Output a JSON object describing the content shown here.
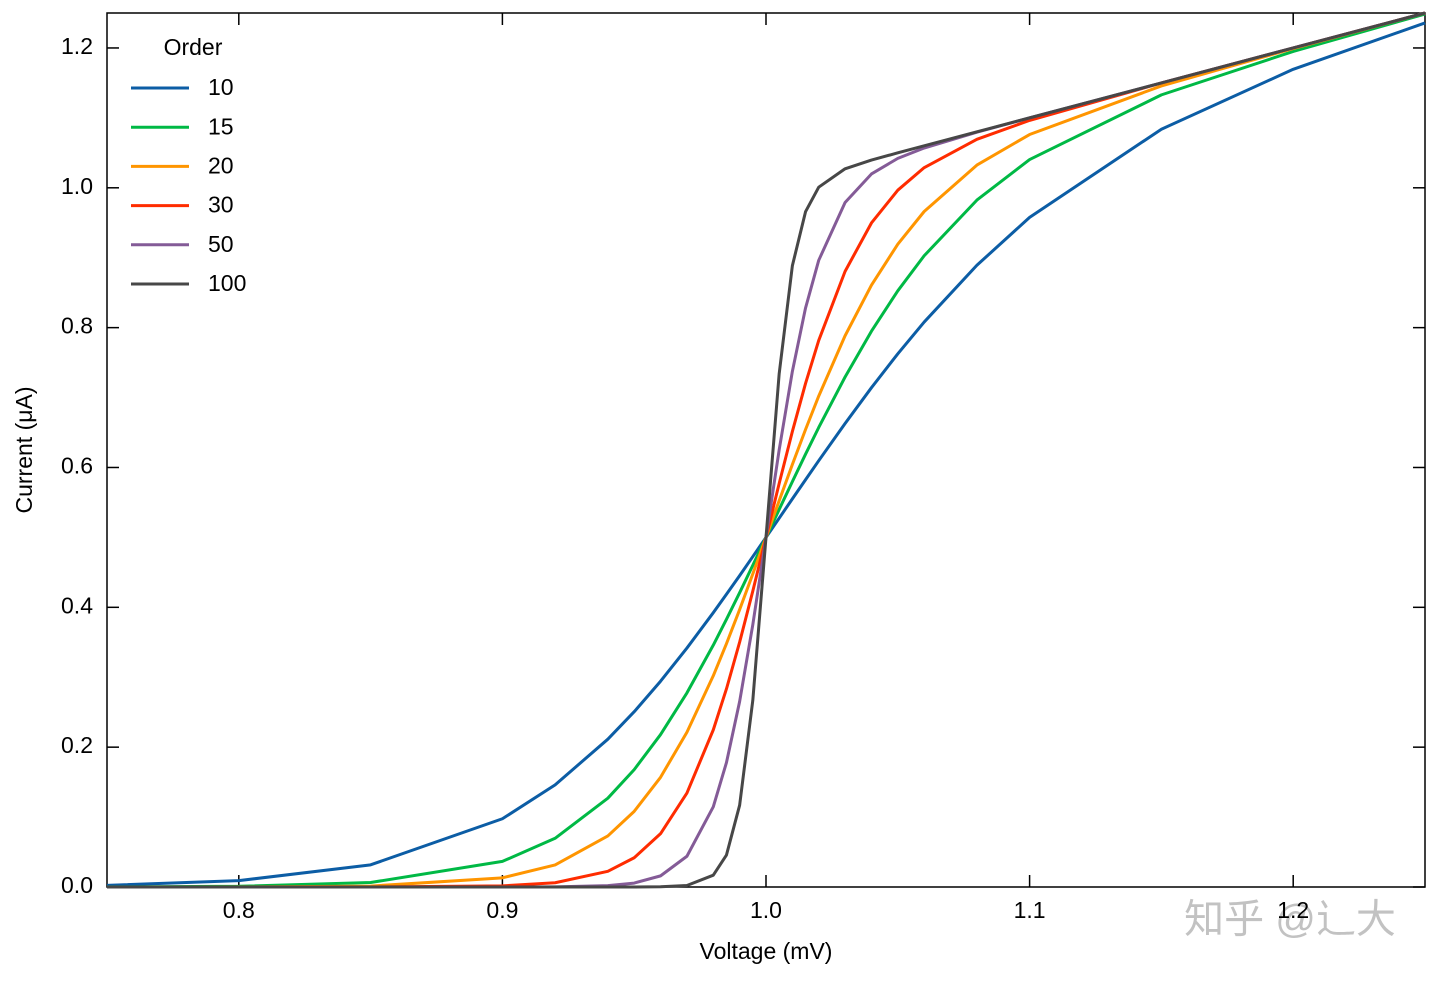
{
  "chart_data": {
    "type": "line",
    "xlabel": "Voltage (mV)",
    "ylabel": "Current (μA)",
    "legend_title": "Order",
    "legend_corner": "upper left",
    "watermark": "知乎 @辶大",
    "xlim": [
      0.75,
      1.25
    ],
    "ylim": [
      0,
      1.25
    ],
    "xticks": [
      0.8,
      0.9,
      {
        "value": 1,
        "label": "1.0"
      },
      1.1,
      1.2
    ],
    "yticks": [
      {
        "value": 0,
        "label": "0.0"
      },
      0.2,
      0.4,
      0.6,
      0.8,
      {
        "value": 1,
        "label": "1.0"
      },
      1.2
    ],
    "x": [
      0.75,
      0.8,
      0.85,
      0.9,
      0.92,
      0.94,
      0.95,
      0.96,
      0.97,
      0.98,
      0.985,
      0.99,
      0.995,
      1.0,
      1.005,
      1.01,
      1.015,
      1.02,
      1.03,
      1.04,
      1.05,
      1.06,
      1.08,
      1.1,
      1.15,
      1.2,
      1.25
    ],
    "series": [
      {
        "name": "10",
        "color": "#0C5DA5",
        "values": [
          0.0024,
          0.0091,
          0.0317,
          0.0976,
          0.1461,
          0.2114,
          0.2507,
          0.2943,
          0.3417,
          0.3923,
          0.4187,
          0.4454,
          0.4726,
          0.5,
          0.5275,
          0.5551,
          0.5825,
          0.6097,
          0.6629,
          0.7141,
          0.7626,
          0.808,
          0.8892,
          0.9577,
          1.0838,
          1.1695,
          1.2358
        ]
      },
      {
        "name": "15",
        "color": "#00B945",
        "values": [
          0.0001,
          0.001,
          0.0064,
          0.0366,
          0.0697,
          0.127,
          0.1679,
          0.218,
          0.2776,
          0.3459,
          0.3828,
          0.4209,
          0.4602,
          0.5,
          0.54,
          0.5798,
          0.619,
          0.6572,
          0.7294,
          0.7949,
          0.8527,
          0.9028,
          0.9824,
          1.0404,
          1.1329,
          1.195,
          1.2485
        ]
      },
      {
        "name": "20",
        "color": "#FF9500",
        "values": [
          0,
          0.0001,
          0.0013,
          0.0131,
          0.0316,
          0.073,
          0.1082,
          0.1569,
          0.2214,
          0.3021,
          0.348,
          0.3968,
          0.4478,
          0.5,
          0.5525,
          0.6042,
          0.6543,
          0.7021,
          0.7884,
          0.8607,
          0.9194,
          0.9661,
          1.0325,
          1.0762,
          1.1457,
          1.1992,
          1.2499
        ]
      },
      {
        "name": "30",
        "color": "#FF2C00",
        "values": [
          0,
          0,
          0,
          0.0016,
          0.0061,
          0.0224,
          0.0418,
          0.0763,
          0.1344,
          0.2247,
          0.2834,
          0.3502,
          0.4233,
          0.5,
          0.5772,
          0.6514,
          0.7202,
          0.7817,
          0.8805,
          0.9497,
          0.9966,
          1.0288,
          1.0694,
          1.0964,
          1.1499,
          1.2,
          1.25
        ]
      },
      {
        "name": "50",
        "color": "#845B97",
        "values": [
          0,
          0,
          0,
          0,
          0.0002,
          0.0019,
          0.0056,
          0.0159,
          0.044,
          0.1147,
          0.178,
          0.2653,
          0.3753,
          0.5,
          0.6253,
          0.7374,
          0.8281,
          0.8963,
          0.979,
          1.0198,
          1.0421,
          1.0569,
          1.0795,
          1.1,
          1.15,
          1.2,
          1.25
        ]
      },
      {
        "name": "100",
        "color": "#474747",
        "values": [
          0,
          0,
          0,
          0,
          0,
          0,
          0,
          0.0003,
          0.0022,
          0.0169,
          0.0457,
          0.117,
          0.2671,
          0.5,
          0.7342,
          0.8885,
          0.9658,
          1.0009,
          1.0272,
          1.0396,
          1.05,
          1.06,
          1.08,
          1.1,
          1.15,
          1.2,
          1.25
        ]
      }
    ]
  }
}
